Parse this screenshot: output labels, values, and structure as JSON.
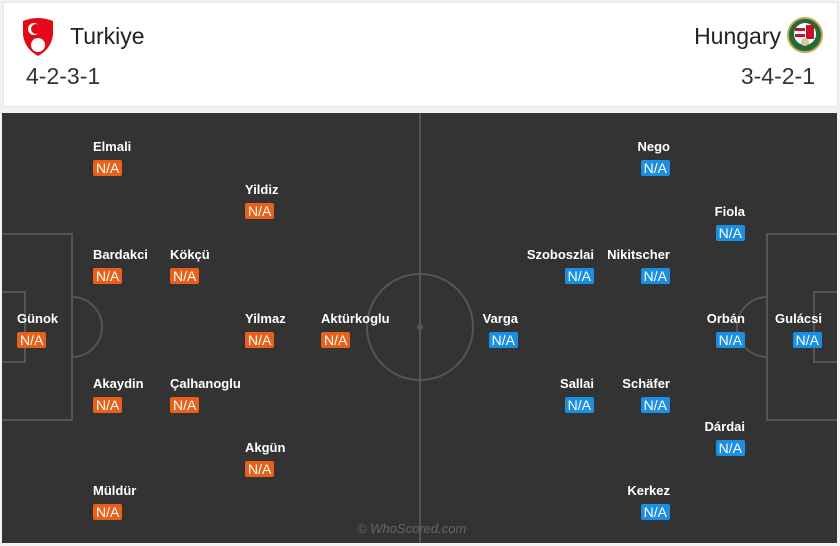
{
  "home": {
    "name": "Turkiye",
    "formation": "4-2-3-1",
    "crest": "turkiye-crest",
    "color": "#e8611a"
  },
  "away": {
    "name": "Hungary",
    "formation": "3-4-2-1",
    "crest": "hungary-crest",
    "color": "#1b8fe2"
  },
  "home_players": [
    {
      "name": "Elmali",
      "rating": "N/A"
    },
    {
      "name": "Yildiz",
      "rating": "N/A"
    },
    {
      "name": "Bardakci",
      "rating": "N/A"
    },
    {
      "name": "Kökçü",
      "rating": "N/A"
    },
    {
      "name": "Günok",
      "rating": "N/A"
    },
    {
      "name": "Yilmaz",
      "rating": "N/A"
    },
    {
      "name": "Aktürkoglu",
      "rating": "N/A"
    },
    {
      "name": "Akaydin",
      "rating": "N/A"
    },
    {
      "name": "Çalhanoglu",
      "rating": "N/A"
    },
    {
      "name": "Akgün",
      "rating": "N/A"
    },
    {
      "name": "Müldür",
      "rating": "N/A"
    }
  ],
  "away_players": [
    {
      "name": "Nego",
      "rating": "N/A"
    },
    {
      "name": "Fiola",
      "rating": "N/A"
    },
    {
      "name": "Szoboszlai",
      "rating": "N/A"
    },
    {
      "name": "Nikitscher",
      "rating": "N/A"
    },
    {
      "name": "Varga",
      "rating": "N/A"
    },
    {
      "name": "Orbán",
      "rating": "N/A"
    },
    {
      "name": "Gulácsi",
      "rating": "N/A"
    },
    {
      "name": "Sallai",
      "rating": "N/A"
    },
    {
      "name": "Schäfer",
      "rating": "N/A"
    },
    {
      "name": "Dárdai",
      "rating": "N/A"
    },
    {
      "name": "Kerkez",
      "rating": "N/A"
    }
  ],
  "watermark": "© WhoScored.com"
}
